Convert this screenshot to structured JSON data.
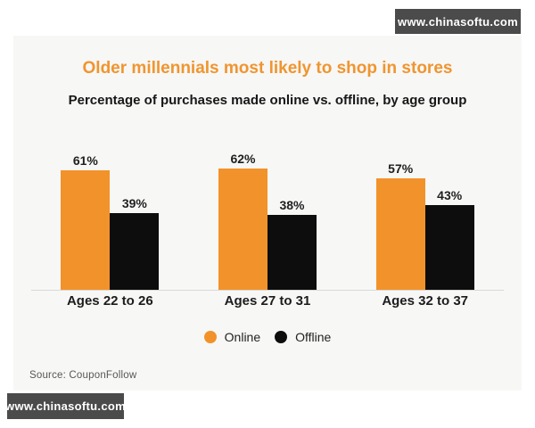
{
  "watermark_top": {
    "text": "www.chinasoftu.com"
  },
  "watermark_bottom": {
    "text": "www.chinasoftu.com"
  },
  "chart_data": {
    "type": "bar",
    "title": "Older millennials most likely to shop in stores",
    "subtitle": "Percentage of purchases made online vs. offline, by age group",
    "categories": [
      "Ages 22 to 26",
      "Ages 27 to 31",
      "Ages 32 to 37"
    ],
    "series": [
      {
        "name": "Online",
        "color": "#f2922a",
        "values": [
          61,
          62,
          57
        ]
      },
      {
        "name": "Offline",
        "color": "#0d0d0d",
        "values": [
          39,
          38,
          43
        ]
      }
    ],
    "value_unit": "%",
    "ylim": [
      0,
      70
    ],
    "grid": false,
    "legend_position": "bottom",
    "source": "Source:  CouponFollow"
  },
  "colors": {
    "title": "#f0952f",
    "online_bar": "#f2922a",
    "offline_bar": "#0d0d0d",
    "panel_background": "#f7f7f6",
    "watermark_background": "#4b4b4b",
    "baseline": "#d9d9d9",
    "source_text": "#575757"
  }
}
